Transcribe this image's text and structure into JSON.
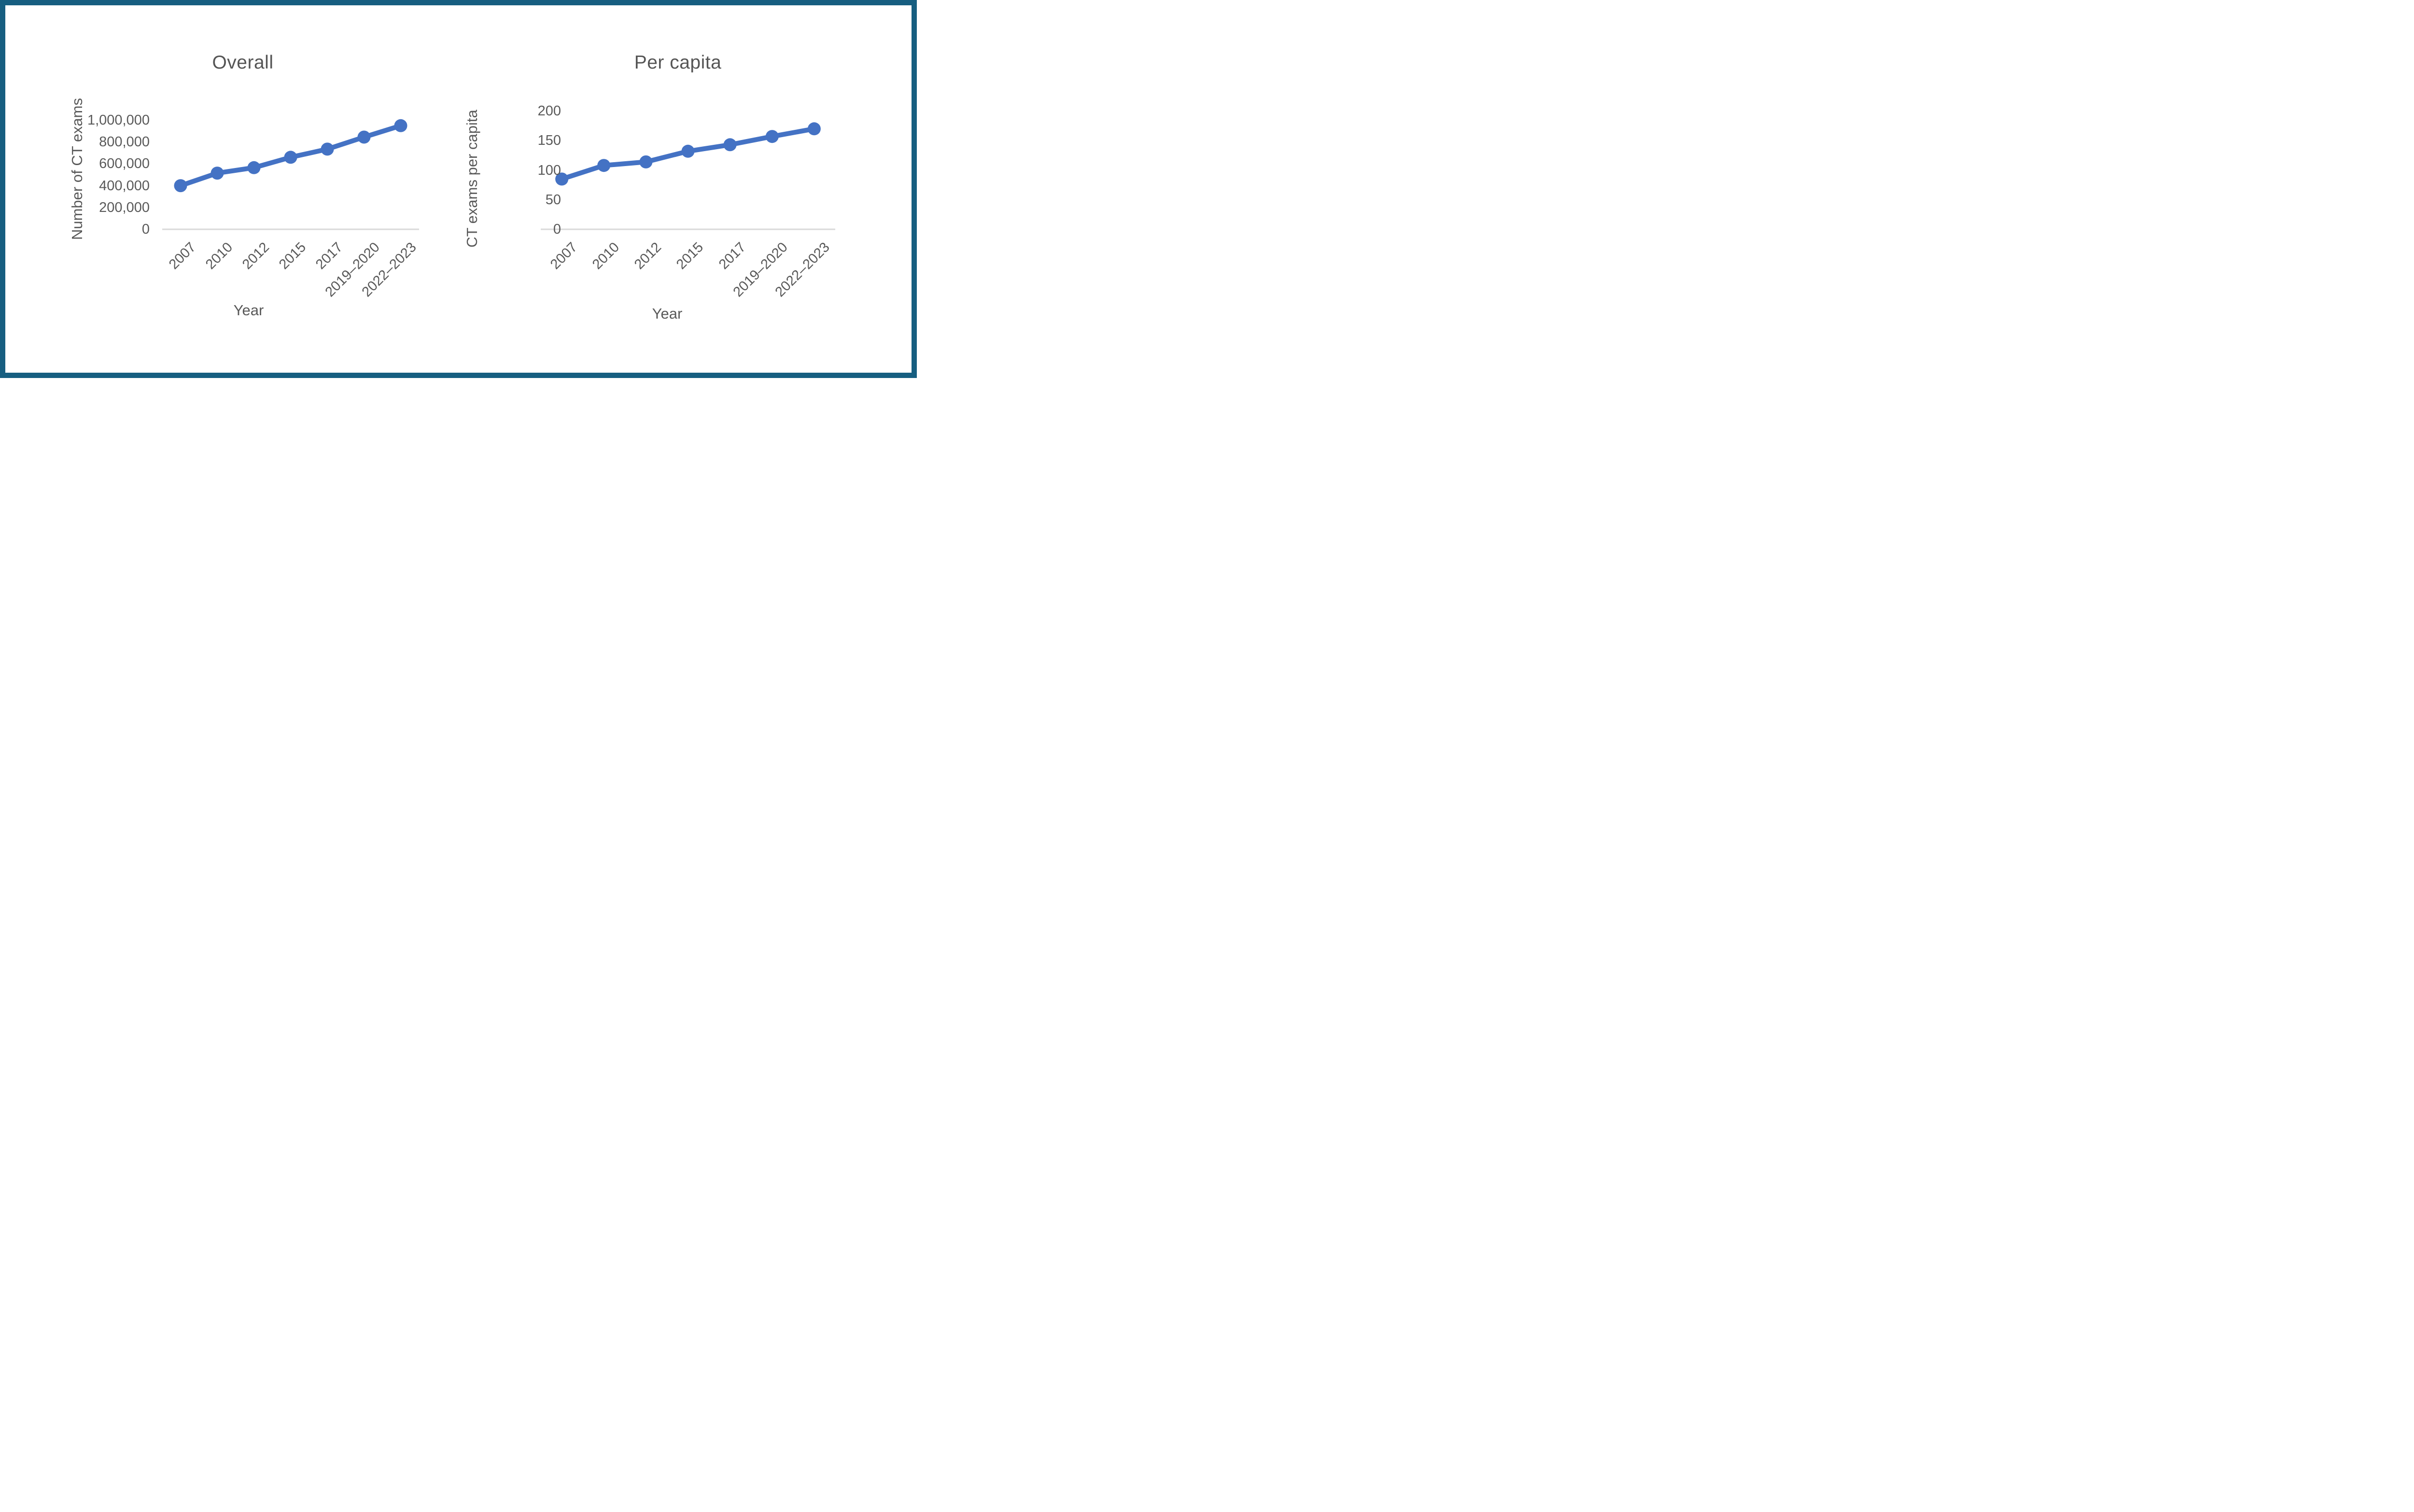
{
  "page": {
    "background": "#ffffff",
    "frame_border_color": "#165E80",
    "text_color": "#595959",
    "accent_line_color": "#4472C4",
    "gridline_color": "#D9D9D9"
  },
  "chart_data": [
    {
      "type": "line",
      "title": "Overall",
      "xlabel": "Year",
      "ylabel": "Number of CT exams",
      "categories": [
        "2007",
        "2010",
        "2012",
        "2015",
        "2017",
        "2019–2020",
        "2022–2023"
      ],
      "values": [
        400000,
        515000,
        565000,
        660000,
        735000,
        845000,
        950000
      ],
      "ylim": [
        0,
        1000000
      ],
      "ytick_values": [
        0,
        200000,
        400000,
        600000,
        800000,
        1000000
      ],
      "ytick_labels": [
        "0",
        "200,000",
        "400,000",
        "600,000",
        "800,000",
        "1,000,000"
      ],
      "xtick_rotation_deg": 45,
      "grid": "baseline-only",
      "legend": "none",
      "line_color": "#4472C4",
      "marker": "circle"
    },
    {
      "type": "line",
      "title": "Per capita",
      "xlabel": "Year",
      "ylabel": "CT exams per capita",
      "categories": [
        "2007",
        "2010",
        "2012",
        "2015",
        "2017",
        "2019–2020",
        "2022–2023"
      ],
      "values": [
        85,
        108,
        114,
        132,
        143,
        157,
        170
      ],
      "ylim": [
        0,
        200
      ],
      "ytick_values": [
        0,
        50,
        100,
        150,
        200
      ],
      "ytick_labels": [
        "0",
        "50",
        "100",
        "150",
        "200"
      ],
      "xtick_rotation_deg": 45,
      "grid": "baseline-only",
      "legend": "none",
      "line_color": "#4472C4",
      "marker": "circle"
    }
  ]
}
